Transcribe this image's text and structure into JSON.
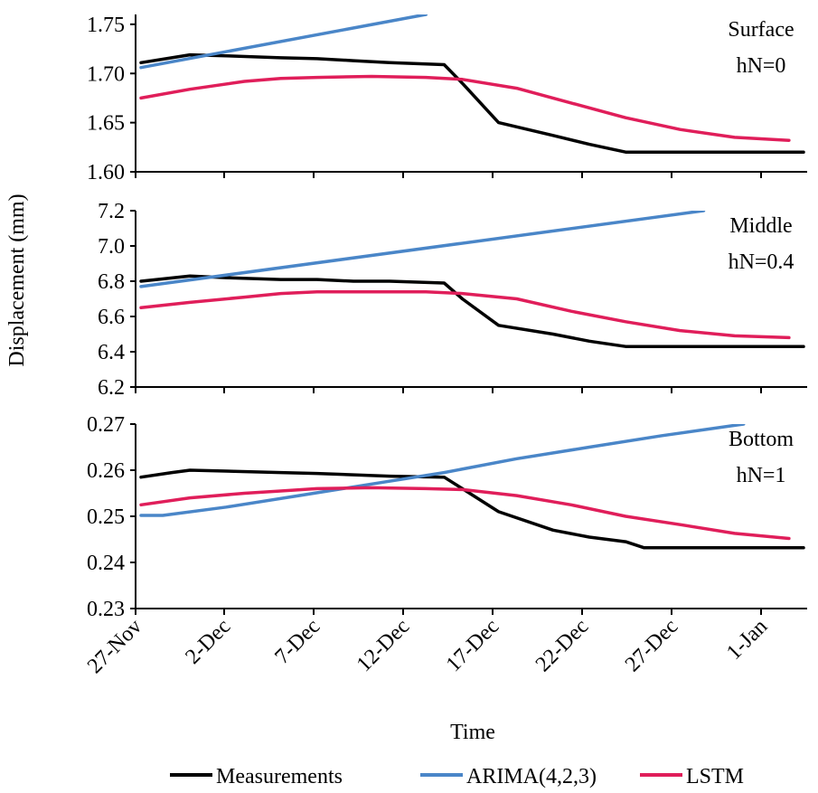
{
  "chart_data": {
    "type": "line",
    "ylabel": "Displacement  (mm)",
    "xlabel": "Time",
    "x_ticks": [
      "27-Nov",
      "2-Dec",
      "7-Dec",
      "12-Dec",
      "17-Dec",
      "22-Dec",
      "27-Dec",
      "1-Jan"
    ],
    "x_range": [
      0,
      37
    ],
    "legend": [
      {
        "name": "Measurements",
        "color": "#000000"
      },
      {
        "name": "ARIMA(4,2,3)",
        "color": "#4a86c8"
      },
      {
        "name": "LSTM",
        "color": "#e01e5a"
      }
    ],
    "panels": [
      {
        "label_line1": "Surface",
        "label_line2": "hN=0",
        "ylim": [
          1.6,
          1.76
        ],
        "yticks": [
          1.6,
          1.65,
          1.7,
          1.75
        ],
        "tick_labels": [
          "1.60",
          "1.65",
          "1.70",
          "1.75"
        ],
        "series": [
          {
            "name": "Measurements",
            "x": [
              0.3,
              3,
              5,
              8,
              10,
              12,
              14,
              17,
              18,
              20,
              23,
              25,
              27,
              28,
              30,
              33,
              36.8
            ],
            "y": [
              1.711,
              1.719,
              1.718,
              1.716,
              1.715,
              1.713,
              1.711,
              1.709,
              1.69,
              1.65,
              1.637,
              1.628,
              1.62,
              1.62,
              1.62,
              1.62,
              1.62
            ]
          },
          {
            "name": "ARIMA(4,2,3)",
            "x": [
              0.3,
              16
            ],
            "y": [
              1.706,
              1.76
            ]
          },
          {
            "name": "LSTM",
            "x": [
              0.3,
              3,
              6,
              8,
              10,
              13,
              16,
              18,
              21,
              24,
              27,
              30,
              33,
              36
            ],
            "y": [
              1.675,
              1.684,
              1.692,
              1.695,
              1.696,
              1.697,
              1.696,
              1.694,
              1.685,
              1.67,
              1.655,
              1.643,
              1.635,
              1.632
            ]
          }
        ]
      },
      {
        "label_line1": "Middle",
        "label_line2": "hN=0.4",
        "ylim": [
          6.2,
          7.2
        ],
        "yticks": [
          6.2,
          6.4,
          6.6,
          6.8,
          7.0,
          7.2
        ],
        "tick_labels": [
          "6.2",
          "6.4",
          "6.6",
          "6.8",
          "7.0",
          "7.2"
        ],
        "series": [
          {
            "name": "Measurements",
            "x": [
              0.3,
              3,
              5,
              8,
              10,
              12,
              14,
              17,
              18,
              20,
              23,
              25,
              27,
              28,
              30,
              33,
              36.8
            ],
            "y": [
              6.8,
              6.83,
              6.82,
              6.81,
              6.81,
              6.8,
              6.8,
              6.79,
              6.7,
              6.55,
              6.5,
              6.46,
              6.43,
              6.43,
              6.43,
              6.43,
              6.43
            ]
          },
          {
            "name": "ARIMA(4,2,3)",
            "x": [
              0.3,
              31.3
            ],
            "y": [
              6.77,
              7.2
            ]
          },
          {
            "name": "LSTM",
            "x": [
              0.3,
              3,
              6,
              8,
              10,
              13,
              16,
              18,
              21,
              24,
              27,
              30,
              33,
              36
            ],
            "y": [
              6.65,
              6.68,
              6.71,
              6.73,
              6.74,
              6.74,
              6.74,
              6.73,
              6.7,
              6.63,
              6.57,
              6.52,
              6.49,
              6.48
            ]
          }
        ]
      },
      {
        "label_line1": "Bottom",
        "label_line2": "hN=1",
        "ylim": [
          0.23,
          0.27
        ],
        "yticks": [
          0.23,
          0.24,
          0.25,
          0.26,
          0.27
        ],
        "tick_labels": [
          "0.23",
          "0.24",
          "0.25",
          "0.26",
          "0.27"
        ],
        "series": [
          {
            "name": "Measurements",
            "x": [
              0.3,
              2,
              3,
              5,
              8,
              10,
              12,
              14,
              17,
              18,
              20,
              23,
              25,
              27,
              28,
              30,
              33,
              36.8
            ],
            "y": [
              0.2585,
              0.2595,
              0.26,
              0.2598,
              0.2595,
              0.2593,
              0.259,
              0.2587,
              0.2585,
              0.256,
              0.251,
              0.247,
              0.2455,
              0.2445,
              0.2432,
              0.2432,
              0.2432,
              0.2432
            ]
          },
          {
            "name": "ARIMA(4,2,3)",
            "x": [
              0.3,
              1.5,
              5,
              9,
              13,
              17,
              21,
              25,
              29,
              33.5
            ],
            "y": [
              0.2502,
              0.2502,
              0.252,
              0.2545,
              0.257,
              0.2595,
              0.2625,
              0.265,
              0.2675,
              0.27
            ]
          },
          {
            "name": "LSTM",
            "x": [
              0.3,
              3,
              6,
              8,
              10,
              13,
              16,
              18,
              21,
              24,
              27,
              30,
              33,
              36
            ],
            "y": [
              0.2525,
              0.254,
              0.255,
              0.2555,
              0.256,
              0.2562,
              0.256,
              0.2558,
              0.2545,
              0.2525,
              0.25,
              0.2482,
              0.2463,
              0.2452
            ]
          }
        ]
      }
    ]
  }
}
